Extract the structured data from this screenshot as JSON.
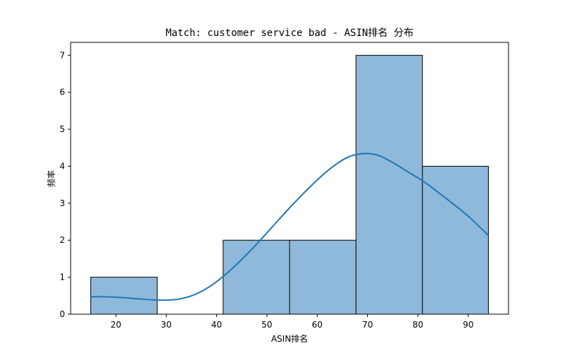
{
  "chart_data": {
    "type": "bar",
    "title": "Match: customer service bad - ASIN排名 分布",
    "xlabel": "ASIN排名",
    "ylabel": "频率",
    "xlim": [
      11.0,
      98.0
    ],
    "ylim": [
      0,
      7.35
    ],
    "xticks": [
      20,
      30,
      40,
      50,
      60,
      70,
      80,
      90
    ],
    "yticks": [
      0,
      1,
      2,
      3,
      4,
      5,
      6,
      7
    ],
    "bins": [
      {
        "start": 15.0,
        "end": 28.2,
        "count": 1
      },
      {
        "start": 28.2,
        "end": 41.3,
        "count": 0
      },
      {
        "start": 41.3,
        "end": 54.5,
        "count": 2
      },
      {
        "start": 54.5,
        "end": 67.7,
        "count": 2
      },
      {
        "start": 67.7,
        "end": 80.9,
        "count": 7
      },
      {
        "start": 80.9,
        "end": 94.0,
        "count": 4
      }
    ],
    "kde": {
      "x": [
        15,
        18,
        21,
        24,
        27,
        30,
        33,
        36,
        39,
        42,
        45,
        48,
        51,
        54,
        57,
        60,
        63,
        66,
        69,
        72,
        75,
        78,
        81,
        84,
        87,
        90,
        94
      ],
      "y": [
        0.47,
        0.47,
        0.45,
        0.42,
        0.39,
        0.38,
        0.42,
        0.55,
        0.78,
        1.1,
        1.48,
        1.9,
        2.35,
        2.8,
        3.23,
        3.63,
        3.98,
        4.24,
        4.34,
        4.3,
        4.1,
        3.85,
        3.6,
        3.3,
        2.98,
        2.65,
        2.13
      ]
    },
    "grid": false,
    "colors": {
      "bar_fill": "#8fb9da",
      "bar_edge": "#000000",
      "kde_line": "#1f77b4"
    }
  }
}
